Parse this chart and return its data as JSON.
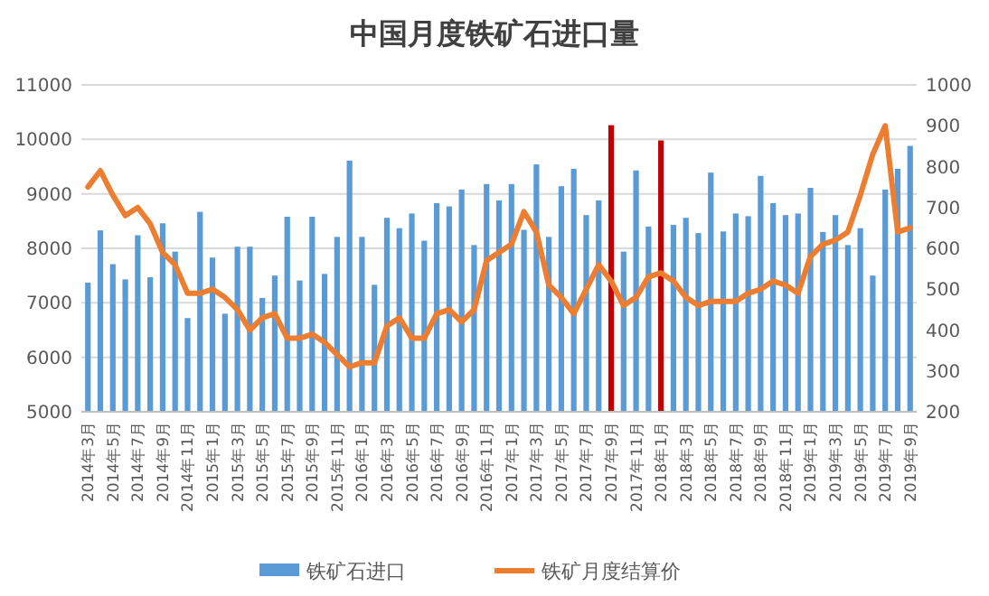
{
  "chart_data": {
    "type": "bar",
    "title": "中国月度铁矿石进口量",
    "categories": [
      "2014年3月",
      null,
      "2014年5月",
      null,
      "2014年7月",
      null,
      "2014年9月",
      null,
      "2014年11月",
      null,
      "2015年1月",
      null,
      "2015年3月",
      null,
      "2015年5月",
      null,
      "2015年7月",
      null,
      "2015年9月",
      null,
      "2015年11月",
      null,
      "2016年1月",
      null,
      "2016年3月",
      null,
      "2016年5月",
      null,
      "2016年7月",
      null,
      "2016年9月",
      null,
      "2016年11月",
      null,
      "2017年1月",
      null,
      "2017年3月",
      null,
      "2017年5月",
      null,
      "2017年7月",
      null,
      "2017年9月",
      null,
      "2017年11月",
      null,
      "2018年1月",
      null,
      "2018年3月",
      null,
      "2018年5月",
      null,
      "2018年7月",
      null,
      "2018年9月",
      null,
      "2018年11月",
      null,
      "2019年1月",
      null,
      "2019年3月",
      null,
      "2019年5月",
      null,
      "2019年7月",
      null,
      "2019年9月"
    ],
    "series": [
      {
        "name": "铁矿石进口",
        "color": "#5b9bd5",
        "colors": [
          "#5b9bd5",
          "#5b9bd5",
          "#5b9bd5",
          "#5b9bd5",
          "#5b9bd5",
          "#5b9bd5",
          "#5b9bd5",
          "#5b9bd5",
          "#5b9bd5",
          "#5b9bd5",
          "#5b9bd5",
          "#5b9bd5",
          "#5b9bd5",
          "#5b9bd5",
          "#5b9bd5",
          "#5b9bd5",
          "#5b9bd5",
          "#5b9bd5",
          "#5b9bd5",
          "#5b9bd5",
          "#5b9bd5",
          "#5b9bd5",
          "#5b9bd5",
          "#5b9bd5",
          "#5b9bd5",
          "#5b9bd5",
          "#5b9bd5",
          "#5b9bd5",
          "#5b9bd5",
          "#5b9bd5",
          "#5b9bd5",
          "#5b9bd5",
          "#5b9bd5",
          "#5b9bd5",
          "#5b9bd5",
          "#5b9bd5",
          "#5b9bd5",
          "#5b9bd5",
          "#5b9bd5",
          "#5b9bd5",
          "#5b9bd5",
          "#5b9bd5",
          "#c00000",
          "#5b9bd5",
          "#5b9bd5",
          "#5b9bd5",
          "#c00000",
          "#5b9bd5",
          "#5b9bd5",
          "#5b9bd5",
          "#5b9bd5",
          "#5b9bd5",
          "#5b9bd5",
          "#5b9bd5",
          "#5b9bd5",
          "#5b9bd5",
          "#5b9bd5",
          "#5b9bd5",
          "#5b9bd5",
          "#5b9bd5",
          "#5b9bd5",
          "#5b9bd5",
          "#5b9bd5",
          "#5b9bd5",
          "#5b9bd5",
          "#5b9bd5",
          "#5b9bd5"
        ],
        "values": [
          7370,
          8330,
          7710,
          7430,
          8240,
          7470,
          8460,
          7940,
          6720,
          8670,
          7830,
          6800,
          8030,
          8030,
          7090,
          7500,
          8580,
          7410,
          8580,
          7530,
          8210,
          9610,
          8210,
          7330,
          8560,
          8370,
          8640,
          8140,
          8830,
          8770,
          9080,
          8060,
          9180,
          8880,
          9180,
          8340,
          9540,
          8210,
          9140,
          9460,
          8610,
          8880,
          10260,
          7940,
          9430,
          8400,
          9980,
          8430,
          8560,
          8280,
          9390,
          8310,
          8640,
          8590,
          9330,
          8830,
          8610,
          8640,
          9110,
          8300,
          8610,
          8060,
          8370,
          7500,
          9080,
          9460,
          9880
        ]
      },
      {
        "name": "铁矿月度结算价",
        "type": "line",
        "axis": "y2",
        "color": "#ed7d31",
        "values": [
          750,
          790,
          730,
          680,
          700,
          660,
          590,
          560,
          490,
          490,
          500,
          480,
          450,
          400,
          430,
          440,
          380,
          380,
          390,
          370,
          340,
          310,
          320,
          320,
          410,
          430,
          380,
          380,
          440,
          450,
          420,
          450,
          570,
          590,
          610,
          690,
          640,
          510,
          480,
          440,
          500,
          560,
          520,
          460,
          480,
          530,
          540,
          520,
          480,
          460,
          470,
          470,
          470,
          490,
          500,
          520,
          510,
          490,
          580,
          610,
          620,
          640,
          730,
          830,
          900,
          640,
          650
        ]
      }
    ],
    "ylim": [
      5000,
      11000
    ],
    "yticks": [
      5000,
      6000,
      7000,
      8000,
      9000,
      10000,
      11000
    ],
    "y2lim": [
      200,
      1000
    ],
    "y2ticks": [
      200,
      300,
      400,
      500,
      600,
      700,
      800,
      900,
      1000
    ],
    "grid": "y",
    "legend": "bottom",
    "marker": "none",
    "line_style": "solid"
  }
}
